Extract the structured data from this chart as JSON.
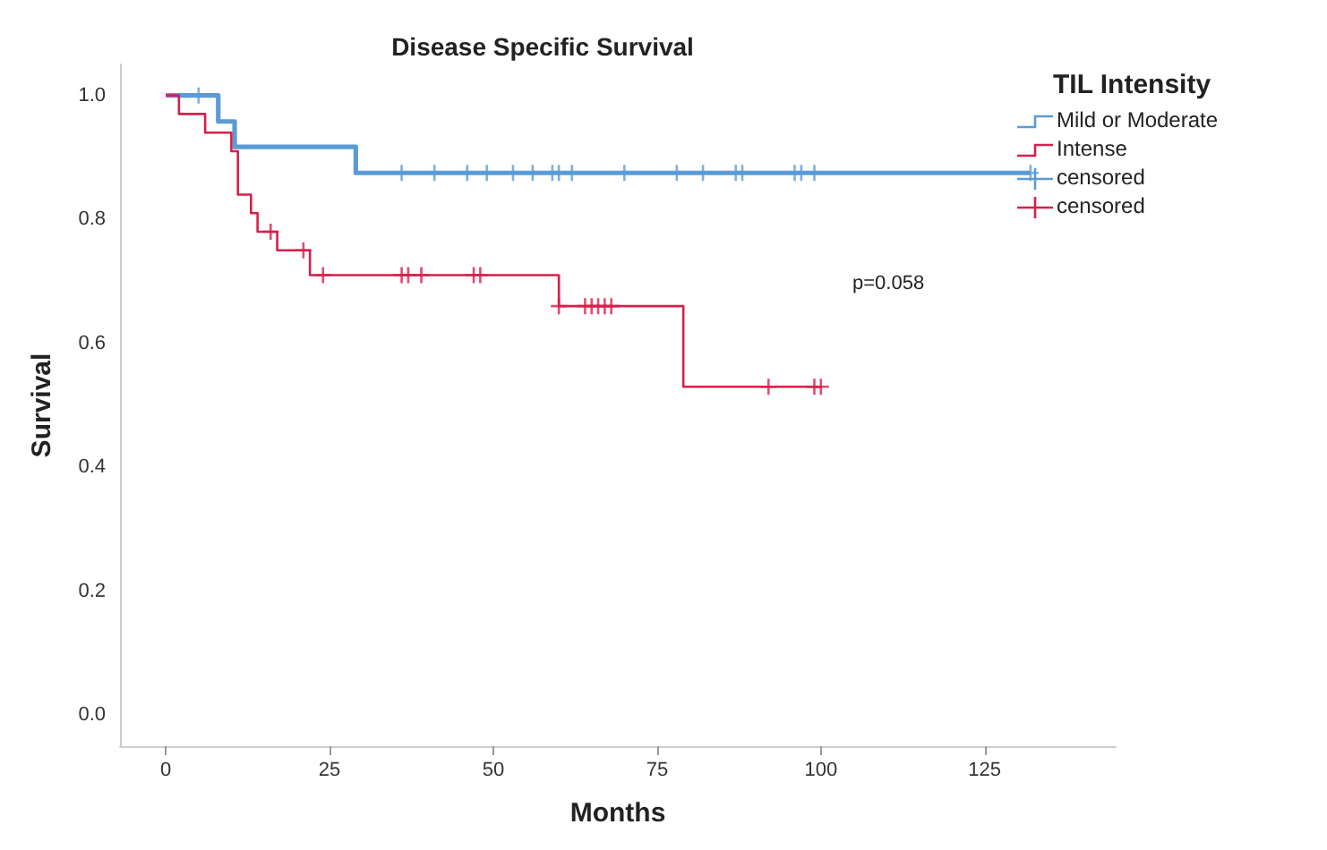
{
  "chart_data": {
    "type": "step",
    "title": "Disease Specific Survival",
    "xlabel": "Months",
    "ylabel": "Survival",
    "legend_title": "TIL Intensity",
    "xlim": [
      -7,
      145
    ],
    "xticks": [
      0,
      25,
      50,
      75,
      100,
      125
    ],
    "ylim": [
      -0.05,
      1.05
    ],
    "yticks": [
      {
        "value": 0,
        "label": "0.0"
      },
      {
        "value": 0.2,
        "label": "0.2"
      },
      {
        "value": 0.4,
        "label": "0.4"
      },
      {
        "value": 0.6,
        "label": "0.6"
      },
      {
        "value": 0.8,
        "label": "0.8"
      },
      {
        "value": 1,
        "label": "1.0"
      }
    ],
    "grid": false,
    "legend": "top right",
    "annotations": [
      "p=0.058"
    ],
    "series": [
      {
        "name": "Mild or Moderate",
        "color": "#5b9bd5",
        "marker": "none",
        "x": [
          0,
          8,
          10.5,
          29,
          132
        ],
        "values": [
          1,
          0.958,
          0.917,
          0.875,
          0.875
        ]
      },
      {
        "name": "Intense",
        "color": "#d6204b",
        "marker": "none",
        "x": [
          0,
          2,
          6,
          10,
          11,
          13,
          14,
          17,
          22,
          60,
          79,
          100
        ],
        "values": [
          1,
          0.97,
          0.94,
          0.91,
          0.84,
          0.81,
          0.78,
          0.75,
          0.71,
          0.66,
          0.53,
          0.53
        ]
      },
      {
        "name": "censored",
        "type": "scatter",
        "color": "#5b9bd5",
        "marker": "cross",
        "x": [
          5,
          36,
          41,
          46,
          49,
          53,
          56,
          59,
          60,
          62,
          70,
          78,
          82,
          87,
          88,
          96,
          97,
          99,
          132
        ],
        "values": [
          1,
          0.875,
          0.875,
          0.875,
          0.875,
          0.875,
          0.875,
          0.875,
          0.875,
          0.875,
          0.875,
          0.875,
          0.875,
          0.875,
          0.875,
          0.875,
          0.875,
          0.875,
          0.875
        ]
      },
      {
        "name": "censored",
        "type": "scatter",
        "color": "#d6204b",
        "marker": "cross",
        "x": [
          16,
          21,
          24,
          36,
          37,
          39,
          47,
          48,
          60,
          64,
          65,
          66,
          67,
          68,
          92,
          99,
          100
        ],
        "values": [
          0.78,
          0.75,
          0.71,
          0.71,
          0.71,
          0.71,
          0.71,
          0.71,
          0.66,
          0.66,
          0.66,
          0.66,
          0.66,
          0.66,
          0.53,
          0.53,
          0.53
        ]
      }
    ]
  }
}
